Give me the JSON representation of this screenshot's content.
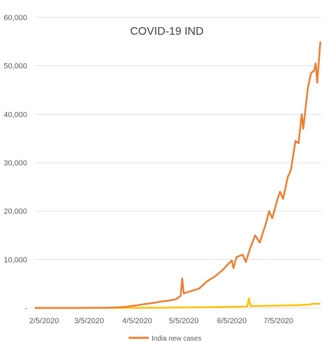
{
  "chart_data": {
    "type": "line",
    "title": "COVID-19 IND",
    "xlabel": "",
    "ylabel": "",
    "x_start": "2020-01-30",
    "x_end": "2020-08-02",
    "xlim": [
      "2020-01-30",
      "2020-08-02"
    ],
    "ylim": [
      0,
      60000
    ],
    "y_ticks": [
      0,
      10000,
      20000,
      30000,
      40000,
      50000,
      60000
    ],
    "y_tick_labels": [
      "-",
      "10,000",
      "20,000",
      "30,000",
      "40,000",
      "50,000",
      "60,000"
    ],
    "x_ticks": [
      "2020-02-05",
      "2020-03-05",
      "2020-04-05",
      "2020-05-05",
      "2020-06-05",
      "2020-07-05"
    ],
    "x_tick_labels": [
      "2/5/2020",
      "3/5/2020",
      "4/5/2020",
      "5/5/2020",
      "6/5/2020",
      "7/5/2020"
    ],
    "grid": "horizontal",
    "legend_position": "bottom",
    "series": [
      {
        "name": "India new cases",
        "color": "#ED7D31",
        "points": [
          [
            "2020-01-30",
            1
          ],
          [
            "2020-02-28",
            0
          ],
          [
            "2020-03-05",
            25
          ],
          [
            "2020-03-15",
            30
          ],
          [
            "2020-03-22",
            100
          ],
          [
            "2020-03-28",
            200
          ],
          [
            "2020-04-01",
            400
          ],
          [
            "2020-04-05",
            550
          ],
          [
            "2020-04-10",
            800
          ],
          [
            "2020-04-15",
            1000
          ],
          [
            "2020-04-20",
            1300
          ],
          [
            "2020-04-25",
            1500
          ],
          [
            "2020-04-30",
            1800
          ],
          [
            "2020-05-03",
            2500
          ],
          [
            "2020-05-04",
            6100
          ],
          [
            "2020-05-05",
            3000
          ],
          [
            "2020-05-10",
            3500
          ],
          [
            "2020-05-15",
            4000
          ],
          [
            "2020-05-20",
            5500
          ],
          [
            "2020-05-25",
            6500
          ],
          [
            "2020-05-30",
            7800
          ],
          [
            "2020-06-03",
            9200
          ],
          [
            "2020-06-05",
            9800
          ],
          [
            "2020-06-06",
            8200
          ],
          [
            "2020-06-08",
            10500
          ],
          [
            "2020-06-12",
            11000
          ],
          [
            "2020-06-14",
            9500
          ],
          [
            "2020-06-17",
            12500
          ],
          [
            "2020-06-20",
            15000
          ],
          [
            "2020-06-23",
            13500
          ],
          [
            "2020-06-27",
            17500
          ],
          [
            "2020-06-29",
            20000
          ],
          [
            "2020-07-01",
            18500
          ],
          [
            "2020-07-04",
            22000
          ],
          [
            "2020-07-06",
            24000
          ],
          [
            "2020-07-08",
            22500
          ],
          [
            "2020-07-11",
            27000
          ],
          [
            "2020-07-13",
            28500
          ],
          [
            "2020-07-16",
            34500
          ],
          [
            "2020-07-18",
            34000
          ],
          [
            "2020-07-20",
            40000
          ],
          [
            "2020-07-21",
            37000
          ],
          [
            "2020-07-24",
            45500
          ],
          [
            "2020-07-26",
            48500
          ],
          [
            "2020-07-28",
            49000
          ],
          [
            "2020-07-29",
            50500
          ],
          [
            "2020-07-30",
            46500
          ],
          [
            "2020-08-01",
            55000
          ]
        ]
      },
      {
        "name": "",
        "color": "#FFC000",
        "points": [
          [
            "2020-01-30",
            0
          ],
          [
            "2020-03-20",
            5
          ],
          [
            "2020-04-05",
            20
          ],
          [
            "2020-04-20",
            50
          ],
          [
            "2020-05-05",
            100
          ],
          [
            "2020-05-20",
            150
          ],
          [
            "2020-06-05",
            250
          ],
          [
            "2020-06-15",
            300
          ],
          [
            "2020-06-16",
            2000
          ],
          [
            "2020-06-17",
            400
          ],
          [
            "2020-07-01",
            450
          ],
          [
            "2020-07-15",
            550
          ],
          [
            "2020-07-25",
            700
          ],
          [
            "2020-07-28",
            900
          ],
          [
            "2020-08-01",
            800
          ]
        ]
      }
    ]
  }
}
